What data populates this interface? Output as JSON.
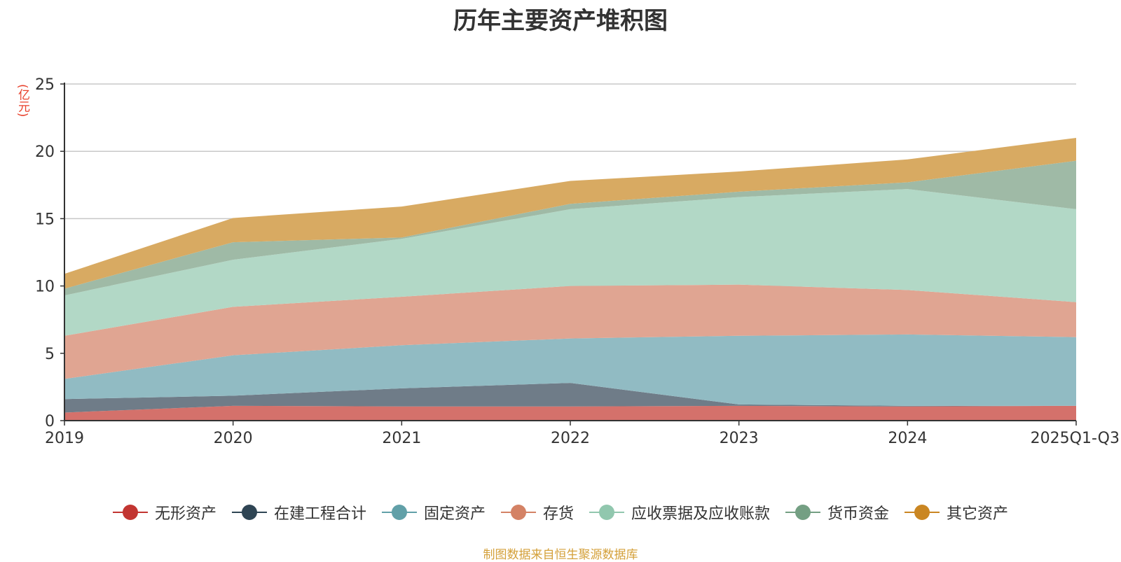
{
  "title": "历年主要资产堆积图",
  "unit": "(亿元)",
  "source": "制图数据来自恒生聚源数据库",
  "chart_data": {
    "type": "area",
    "stacked": true,
    "title": "历年主要资产堆积图",
    "ylabel": "(亿元)",
    "ylim": [
      0,
      25
    ],
    "yticks": [
      0,
      5,
      10,
      15,
      20,
      25
    ],
    "grid": true,
    "legend_position": "bottom",
    "categories": [
      "2019",
      "2020",
      "2021",
      "2022",
      "2023",
      "2024",
      "2025Q1-Q3"
    ],
    "series": [
      {
        "name": "无形资产",
        "color": "#c23531",
        "fill": "#d4716b",
        "values": [
          0.6,
          1.1,
          1.05,
          1.05,
          1.1,
          1.05,
          1.1
        ]
      },
      {
        "name": "在建工程合计",
        "color": "#2f4554",
        "fill": "#6f7c88",
        "values": [
          1.0,
          0.75,
          1.35,
          1.75,
          0.1,
          0.05,
          0.0
        ]
      },
      {
        "name": "固定资产",
        "color": "#61a0a8",
        "fill": "#91bbc3",
        "values": [
          1.5,
          3.0,
          3.2,
          3.3,
          5.1,
          5.3,
          5.1
        ]
      },
      {
        "name": "存货",
        "color": "#d48265",
        "fill": "#e0a592",
        "values": [
          3.2,
          3.6,
          3.6,
          3.9,
          3.8,
          3.3,
          2.6
        ]
      },
      {
        "name": "应收票据及应收账款",
        "color": "#91c7ae",
        "fill": "#b2d8c6",
        "values": [
          3.0,
          3.5,
          4.3,
          5.7,
          6.5,
          7.5,
          6.9
        ]
      },
      {
        "name": "货币资金",
        "color": "#749f83",
        "fill": "#9fbaa6",
        "values": [
          0.5,
          1.3,
          0.1,
          0.4,
          0.4,
          0.5,
          3.6
        ]
      },
      {
        "name": "其它资产",
        "color": "#ca8622",
        "fill": "#d8aa62",
        "values": [
          1.1,
          1.8,
          2.3,
          1.7,
          1.5,
          1.7,
          1.7
        ]
      }
    ]
  }
}
